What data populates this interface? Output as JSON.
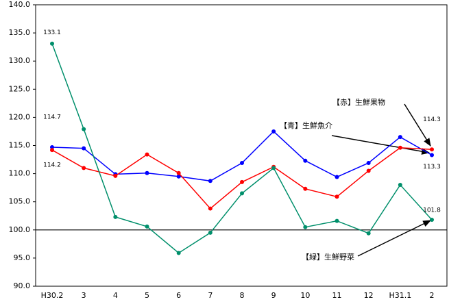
{
  "chart_data": {
    "type": "line",
    "categories": [
      "H30.2",
      "3",
      "4",
      "5",
      "6",
      "7",
      "8",
      "9",
      "10",
      "11",
      "12",
      "H31.1",
      "2"
    ],
    "series": [
      {
        "name": "【青】生鮮魚介",
        "color": "#0000ff",
        "values": [
          114.7,
          114.5,
          109.9,
          110.1,
          109.5,
          108.7,
          111.9,
          117.5,
          112.3,
          109.4,
          111.9,
          116.5,
          113.3
        ]
      },
      {
        "name": "【赤】生鮮果物",
        "color": "#ff0000",
        "values": [
          114.2,
          111.0,
          109.6,
          113.4,
          110.1,
          103.8,
          108.5,
          111.2,
          107.3,
          105.9,
          110.5,
          114.6,
          114.3
        ]
      },
      {
        "name": "【緑】生鮮野菜",
        "color": "#008f6b",
        "values": [
          133.1,
          117.9,
          102.3,
          100.6,
          95.9,
          99.5,
          106.5,
          111.0,
          100.5,
          101.6,
          99.4,
          108.0,
          101.8
        ]
      }
    ],
    "ylim": [
      90,
      140
    ],
    "yticks": [
      {
        "value": 90,
        "label": "90.0"
      },
      {
        "value": 95,
        "label": "95.0"
      },
      {
        "value": 100,
        "label": "100.0"
      },
      {
        "value": 105,
        "label": "105.0"
      },
      {
        "value": 110,
        "label": "110.0"
      },
      {
        "value": 115,
        "label": "115.0"
      },
      {
        "value": 120,
        "label": "120.0"
      },
      {
        "value": 125,
        "label": "125.0"
      },
      {
        "value": 130,
        "label": "130.0"
      },
      {
        "value": 135,
        "label": "135.0"
      },
      {
        "value": 140,
        "label": "140.0"
      }
    ],
    "reference_line": 100
  }
}
